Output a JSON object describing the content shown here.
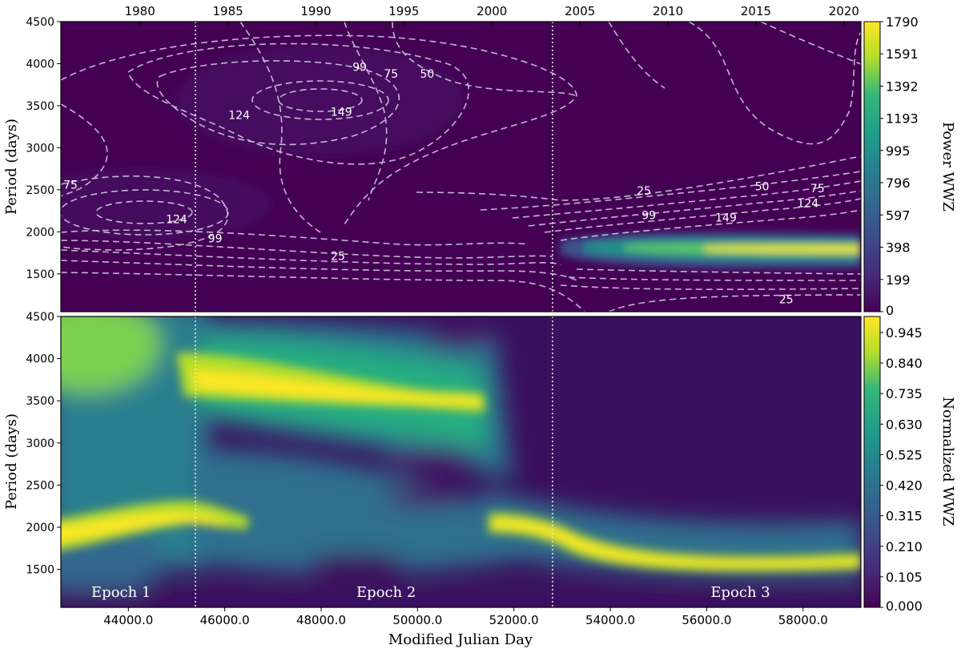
{
  "chart_data": [
    {
      "type": "heatmap",
      "panel": "top",
      "ylabel": "Period (days)",
      "colorbar_label": "Power WWZ",
      "colorbar_ticks": [
        "0",
        "199",
        "398",
        "597",
        "796",
        "995",
        "1193",
        "1392",
        "1591",
        "1790"
      ],
      "colorbar_range": [
        0,
        1790
      ],
      "xlim": [
        42600,
        59200
      ],
      "ylim": [
        1050,
        4500
      ],
      "yticks": [
        "1500",
        "2000",
        "2500",
        "3000",
        "3500",
        "4000",
        "4500"
      ],
      "top_axis_ticks": [
        {
          "label": "1980",
          "mjd": 44240
        },
        {
          "label": "1985",
          "mjd": 46066
        },
        {
          "label": "1990",
          "mjd": 47892
        },
        {
          "label": "1995",
          "mjd": 49718
        },
        {
          "label": "2000",
          "mjd": 51544
        },
        {
          "label": "2005",
          "mjd": 53371
        },
        {
          "label": "2010",
          "mjd": 55197
        },
        {
          "label": "2015",
          "mjd": 57023
        },
        {
          "label": "2020",
          "mjd": 58849
        }
      ],
      "epoch_boundaries": [
        45500,
        52800
      ],
      "contour_levels": [
        "25",
        "50",
        "75",
        "99",
        "124",
        "149"
      ],
      "contour_annotations": [
        {
          "text": "99",
          "mjd": 48800,
          "period": 3960
        },
        {
          "text": "75",
          "mjd": 49450,
          "period": 3880
        },
        {
          "text": "50",
          "mjd": 50200,
          "period": 3880
        },
        {
          "text": "149",
          "mjd": 48420,
          "period": 3430
        },
        {
          "text": "124",
          "mjd": 46300,
          "period": 3390
        },
        {
          "text": "75",
          "mjd": 42800,
          "period": 2560
        },
        {
          "text": "124",
          "mjd": 45000,
          "period": 2150
        },
        {
          "text": "99",
          "mjd": 45800,
          "period": 1920
        },
        {
          "text": "25",
          "mjd": 48350,
          "period": 1710
        },
        {
          "text": "25",
          "mjd": 54700,
          "period": 2490
        },
        {
          "text": "50",
          "mjd": 57150,
          "period": 2540
        },
        {
          "text": "75",
          "mjd": 58300,
          "period": 2520
        },
        {
          "text": "99",
          "mjd": 54800,
          "period": 2200
        },
        {
          "text": "149",
          "mjd": 56400,
          "period": 2170
        },
        {
          "text": "124",
          "mjd": 58100,
          "period": 2340
        },
        {
          "text": "25",
          "mjd": 57650,
          "period": 1200
        }
      ],
      "power_peak": {
        "mjd": 57500,
        "period": 1790,
        "value": 1790
      }
    },
    {
      "type": "heatmap",
      "panel": "bottom",
      "xlabel": "Modified Julian Day",
      "ylabel": "Period (days)",
      "colorbar_label": "Normalized WWZ",
      "colorbar_ticks": [
        "0.000",
        "0.105",
        "0.210",
        "0.315",
        "0.420",
        "0.525",
        "0.630",
        "0.735",
        "0.840",
        "0.945"
      ],
      "colorbar_range": [
        0,
        1.0
      ],
      "xlim": [
        42600,
        59200
      ],
      "ylim": [
        1050,
        4500
      ],
      "xticks": [
        "44000.0",
        "46000.0",
        "48000.0",
        "50000.0",
        "52000.0",
        "54000.0",
        "56000.0",
        "58000.0"
      ],
      "yticks": [
        "1500",
        "2000",
        "2500",
        "3000",
        "3500",
        "4000",
        "4500"
      ],
      "epoch_boundaries": [
        45500,
        52800
      ],
      "epoch_labels": [
        {
          "text": "Epoch 1",
          "mjd": 43850
        },
        {
          "text": "Epoch 2",
          "mjd": 49350
        },
        {
          "text": "Epoch 3",
          "mjd": 56700
        }
      ],
      "ridges": [
        {
          "name": "epoch1-low",
          "mjd_range": [
            42600,
            45800
          ],
          "period": 2050
        },
        {
          "name": "epoch2-high",
          "mjd_range": [
            45500,
            51400
          ],
          "period": 3650
        },
        {
          "name": "epoch3-low",
          "mjd_range": [
            51300,
            59200
          ],
          "period": 1820
        }
      ]
    }
  ]
}
